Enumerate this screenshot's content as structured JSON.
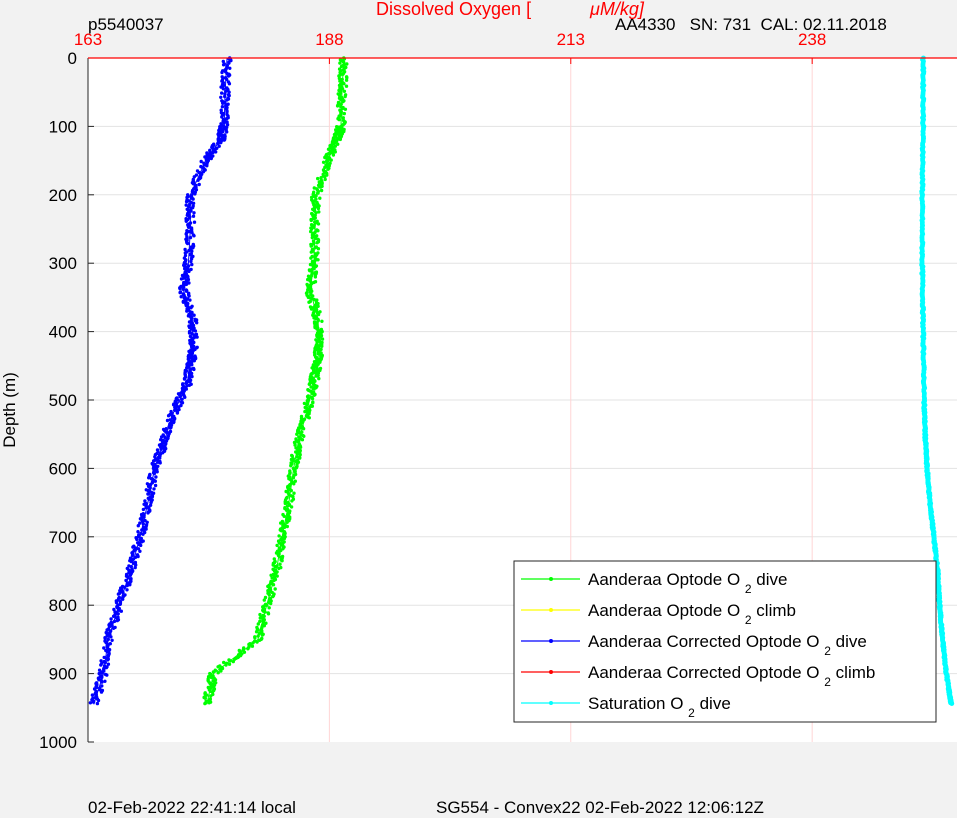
{
  "header": {
    "profile_id": "p5540037",
    "sensor_info": "AA4330   SN: 731  CAL: 02.11.2018"
  },
  "footer": {
    "local_time": "02-Feb-2022 22:41:14 local",
    "mission": "SG554 - Convex22 02-Feb-2022 12:06:12Z"
  },
  "colors": {
    "axis_red": "#ff0000",
    "dive": "#00ff00",
    "climb": "#ffff00",
    "corrected_dive": "#0000ff",
    "corrected_climb": "#ff0000",
    "saturation": "#00ffff"
  },
  "chart_data": {
    "type": "line",
    "title": "Dissolved Oxygen [",
    "title_unit": "μM/kg]",
    "xlabel": "Dissolved Oxygen [μM/kg]",
    "ylabel": "Depth (m)",
    "xlim": [
      163,
      253
    ],
    "ylim": [
      0,
      1000
    ],
    "y_reversed": true,
    "x_axis_position": "top",
    "x_ticks": [
      163,
      188,
      213,
      238
    ],
    "y_ticks": [
      0,
      100,
      200,
      300,
      400,
      500,
      600,
      700,
      800,
      900,
      1000
    ],
    "grid": true,
    "legend_position": "bottom-right",
    "series": [
      {
        "name": "Aanderaa Optode O",
        "name_sub": "2",
        "name_suffix": "dive",
        "color": "#00ff00",
        "marker": "dot",
        "depth": [
          0,
          50,
          100,
          120,
          150,
          200,
          250,
          300,
          340,
          380,
          420,
          450,
          480,
          520,
          560,
          600,
          650,
          700,
          750,
          800,
          850,
          900,
          945
        ],
        "values": [
          189.5,
          189.3,
          189.2,
          188.8,
          187.8,
          186.6,
          186.5,
          186.4,
          186.0,
          186.8,
          187.0,
          186.7,
          186.3,
          185.6,
          184.8,
          184.3,
          183.8,
          183.1,
          182.5,
          181.5,
          180.6,
          176.0,
          175.3
        ]
      },
      {
        "name": "Aanderaa Optode O",
        "name_sub": "2",
        "name_suffix": "climb",
        "color": "#ffff00",
        "marker": "triangle",
        "depth": [],
        "values": []
      },
      {
        "name": "Aanderaa Corrected Optode O",
        "name_sub": "2",
        "name_suffix": "dive",
        "color": "#0000ff",
        "marker": "dot",
        "depth": [
          0,
          50,
          100,
          120,
          150,
          200,
          250,
          300,
          340,
          380,
          420,
          450,
          480,
          520,
          560,
          600,
          650,
          700,
          750,
          800,
          850,
          900,
          945
        ],
        "values": [
          177.4,
          177.2,
          177.1,
          176.7,
          175.2,
          173.6,
          173.6,
          173.4,
          172.9,
          173.8,
          173.9,
          173.6,
          173.2,
          171.8,
          170.9,
          169.9,
          169.2,
          168.4,
          167.4,
          166.2,
          165.1,
          164.6,
          163.6
        ]
      },
      {
        "name": "Aanderaa Corrected Optode O",
        "name_sub": "2",
        "name_suffix": "climb",
        "color": "#ff0000",
        "marker": "dot",
        "depth": [],
        "values": []
      },
      {
        "name": "Saturation O",
        "name_sub": "2",
        "name_suffix": "dive",
        "color": "#00ffff",
        "marker": "triangle",
        "depth": [
          0,
          100,
          200,
          300,
          400,
          500,
          550,
          600,
          650,
          700,
          750,
          800,
          850,
          900,
          945
        ],
        "values": [
          249.5,
          249.5,
          249.4,
          249.4,
          249.5,
          249.6,
          249.7,
          249.9,
          250.2,
          250.6,
          251.0,
          251.2,
          251.5,
          251.9,
          252.4
        ]
      }
    ]
  }
}
